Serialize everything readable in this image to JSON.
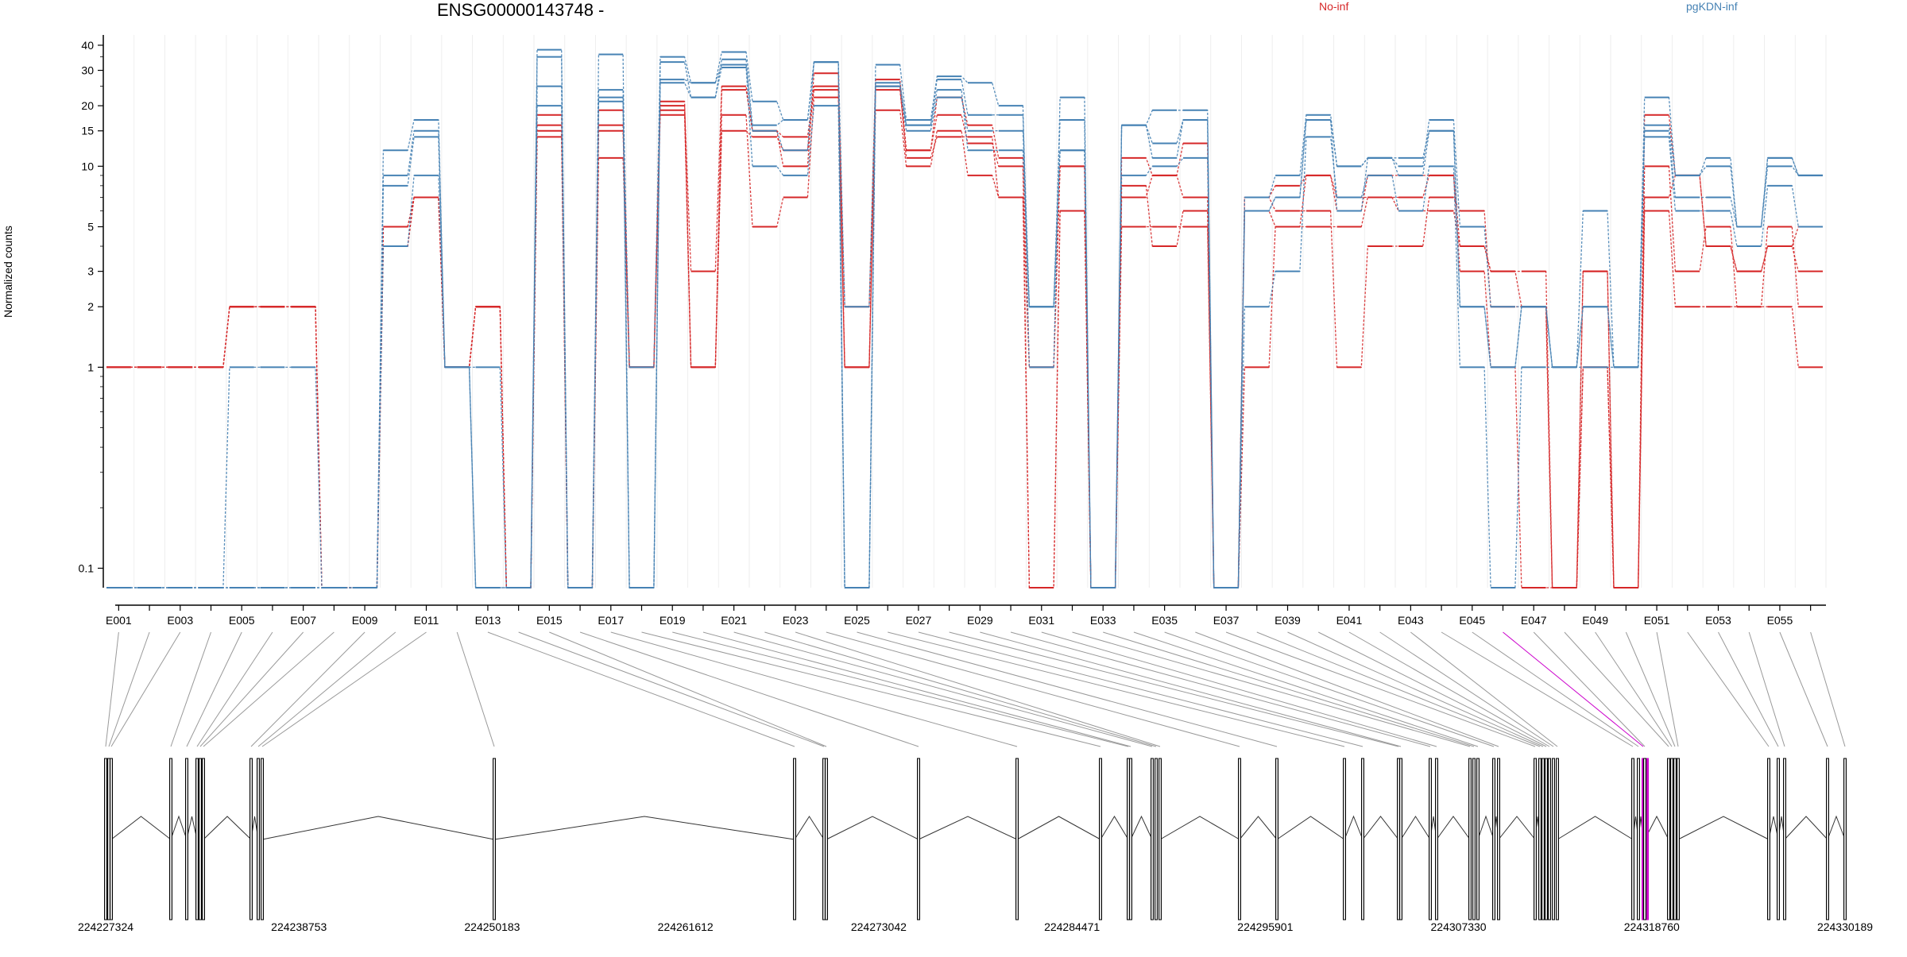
{
  "chart_data": {
    "type": "line",
    "title": "ENSG00000143748 -",
    "ylabel": "Normalized counts",
    "yscale": "log",
    "ylim": [
      0.08,
      45
    ],
    "yticks": [
      0.1,
      1,
      2,
      3,
      5,
      10,
      15,
      20,
      30,
      40
    ],
    "ytick_labels": [
      "0.1",
      "1",
      "2",
      "3",
      "5",
      "10",
      "15",
      "20",
      "30",
      "40"
    ],
    "categories": [
      "E001",
      "E002",
      "E003",
      "E004",
      "E005",
      "E006",
      "E007",
      "E008",
      "E009",
      "E010",
      "E011",
      "E012",
      "E013",
      "E014",
      "E015",
      "E016",
      "E017",
      "E018",
      "E019",
      "E020",
      "E021",
      "E022",
      "E023",
      "E024",
      "E025",
      "E026",
      "E027",
      "E028",
      "E029",
      "E030",
      "E031",
      "E032",
      "E033",
      "E034",
      "E035",
      "E036",
      "E037",
      "E038",
      "E039",
      "E040",
      "E041",
      "E042",
      "E043",
      "E044",
      "E045",
      "E046",
      "E047",
      "E048",
      "E049",
      "E050",
      "E051",
      "E052",
      "E053",
      "E054",
      "E055",
      "E056"
    ],
    "xtick_labels": [
      "E001",
      "E003",
      "E005",
      "E007",
      "E009",
      "E011",
      "E013",
      "E015",
      "E017",
      "E019",
      "E021",
      "E023",
      "E025",
      "E027",
      "E029",
      "E031",
      "E033",
      "E035",
      "E037",
      "E039",
      "E041",
      "E043",
      "E045",
      "E047",
      "E049",
      "E051",
      "E053",
      "E055"
    ],
    "legend": [
      {
        "name": "No-inf",
        "color": "#d62728"
      },
      {
        "name": "pgKDN-inf",
        "color": "#4682b4"
      }
    ],
    "series": [
      {
        "group": "No-inf",
        "color": "#d62728",
        "values": [
          1,
          1,
          1,
          1,
          2,
          2,
          2,
          0.08,
          0.08,
          5,
          7,
          1,
          2,
          0.08,
          16,
          0.08,
          16,
          1,
          20,
          3,
          25,
          15,
          14,
          25,
          2,
          27,
          12,
          22,
          16,
          11,
          1,
          10,
          0.08,
          11,
          9,
          13,
          0.08,
          7,
          8,
          9,
          6,
          9,
          9,
          9,
          4,
          3,
          3,
          0.08,
          3,
          0.08,
          18,
          9,
          4,
          3,
          4,
          3
        ]
      },
      {
        "group": "No-inf",
        "color": "#d62728",
        "values": [
          1,
          1,
          1,
          1,
          2,
          2,
          2,
          0.08,
          0.08,
          4,
          7,
          1,
          2,
          0.08,
          15,
          0.08,
          11,
          1,
          19,
          1,
          24,
          15,
          10,
          29,
          1,
          24,
          12,
          18,
          13,
          10,
          0.08,
          6,
          0.08,
          8,
          4,
          6,
          0.08,
          7,
          6,
          6,
          1,
          4,
          4,
          7,
          6,
          2,
          2,
          0.08,
          1,
          0.08,
          10,
          3,
          5,
          2,
          5,
          2
        ]
      },
      {
        "group": "No-inf",
        "color": "#d62728",
        "values": [
          1,
          1,
          1,
          1,
          2,
          2,
          2,
          0.08,
          0.08,
          5,
          7,
          1,
          2,
          0.08,
          18,
          0.08,
          19,
          1,
          18,
          1,
          18,
          5,
          7,
          22,
          1,
          19,
          10,
          15,
          9,
          7,
          0.08,
          6,
          0.08,
          5,
          5,
          5,
          0.08,
          1,
          5,
          5,
          5,
          7,
          7,
          9,
          3,
          1,
          0.08,
          0.08,
          1,
          0.08,
          6,
          2,
          2,
          2,
          2,
          1
        ]
      },
      {
        "group": "No-inf",
        "color": "#d62728",
        "values": [
          1,
          1,
          1,
          1,
          2,
          2,
          2,
          0.08,
          0.08,
          4,
          7,
          1,
          2,
          0.08,
          14,
          0.08,
          15,
          1,
          21,
          1,
          15,
          14,
          12,
          24,
          1,
          25,
          11,
          14,
          14,
          7,
          1,
          10,
          0.08,
          7,
          9,
          7,
          0.08,
          6,
          5,
          9,
          7,
          7,
          6,
          6,
          4,
          3,
          2,
          0.08,
          3,
          0.08,
          7,
          9,
          4,
          3,
          4,
          5
        ]
      },
      {
        "group": "pgKDN-inf",
        "color": "#4682b4",
        "values": [
          0.08,
          0.08,
          0.08,
          0.08,
          0.08,
          0.08,
          0.08,
          0.08,
          0.08,
          12,
          17,
          1,
          0.08,
          0.08,
          38,
          0.08,
          36,
          0.08,
          35,
          26,
          37,
          21,
          17,
          33,
          0.08,
          32,
          17,
          28,
          26,
          20,
          1,
          22,
          0.08,
          16,
          19,
          19,
          0.08,
          7,
          9,
          18,
          10,
          11,
          10,
          17,
          5,
          2,
          2,
          1,
          6,
          1,
          22,
          9,
          11,
          5,
          11,
          9
        ]
      },
      {
        "group": "pgKDN-inf",
        "color": "#4682b4",
        "values": [
          0.08,
          0.08,
          0.08,
          0.08,
          1,
          1,
          1,
          0.08,
          0.08,
          9,
          15,
          1,
          1,
          0.08,
          35,
          0.08,
          24,
          1,
          33,
          22,
          34,
          16,
          17,
          33,
          2,
          26,
          16,
          27,
          18,
          18,
          2,
          17,
          0.08,
          16,
          13,
          17,
          0.08,
          6,
          7,
          17,
          10,
          11,
          11,
          15,
          2,
          1,
          2,
          1,
          2,
          1,
          16,
          9,
          10,
          5,
          11,
          9
        ]
      },
      {
        "group": "pgKDN-inf",
        "color": "#4682b4",
        "values": [
          0.08,
          0.08,
          0.08,
          0.08,
          0.08,
          0.08,
          0.08,
          0.08,
          0.08,
          8,
          14,
          1,
          0.08,
          0.08,
          25,
          0.08,
          22,
          0.08,
          27,
          26,
          32,
          15,
          12,
          33,
          0.08,
          25,
          15,
          22,
          15,
          15,
          2,
          12,
          0.08,
          9,
          10,
          11,
          0.08,
          6,
          7,
          17,
          6,
          11,
          9,
          15,
          2,
          1,
          2,
          1,
          2,
          1,
          15,
          7,
          7,
          5,
          10,
          9
        ]
      },
      {
        "group": "pgKDN-inf",
        "color": "#4682b4",
        "values": [
          0.08,
          0.08,
          0.08,
          0.08,
          0.08,
          0.08,
          0.08,
          0.08,
          0.08,
          4,
          9,
          1,
          0.08,
          0.08,
          20,
          0.08,
          21,
          0.08,
          26,
          22,
          31,
          10,
          9,
          20,
          0.08,
          25,
          16,
          24,
          12,
          12,
          2,
          12,
          0.08,
          16,
          11,
          17,
          0.08,
          2,
          3,
          14,
          7,
          9,
          6,
          10,
          1,
          0.08,
          1,
          1,
          1,
          1,
          14,
          6,
          6,
          4,
          8,
          5
        ]
      }
    ],
    "structure_panel": {
      "coordinate_labels": [
        "224227324",
        "224238753",
        "224250183",
        "224261612",
        "224273042",
        "224284471",
        "224295901",
        "224307330",
        "224318760",
        "224330189"
      ],
      "highlighted_exon": "E046",
      "highlight_color": "#cc00cc"
    }
  }
}
